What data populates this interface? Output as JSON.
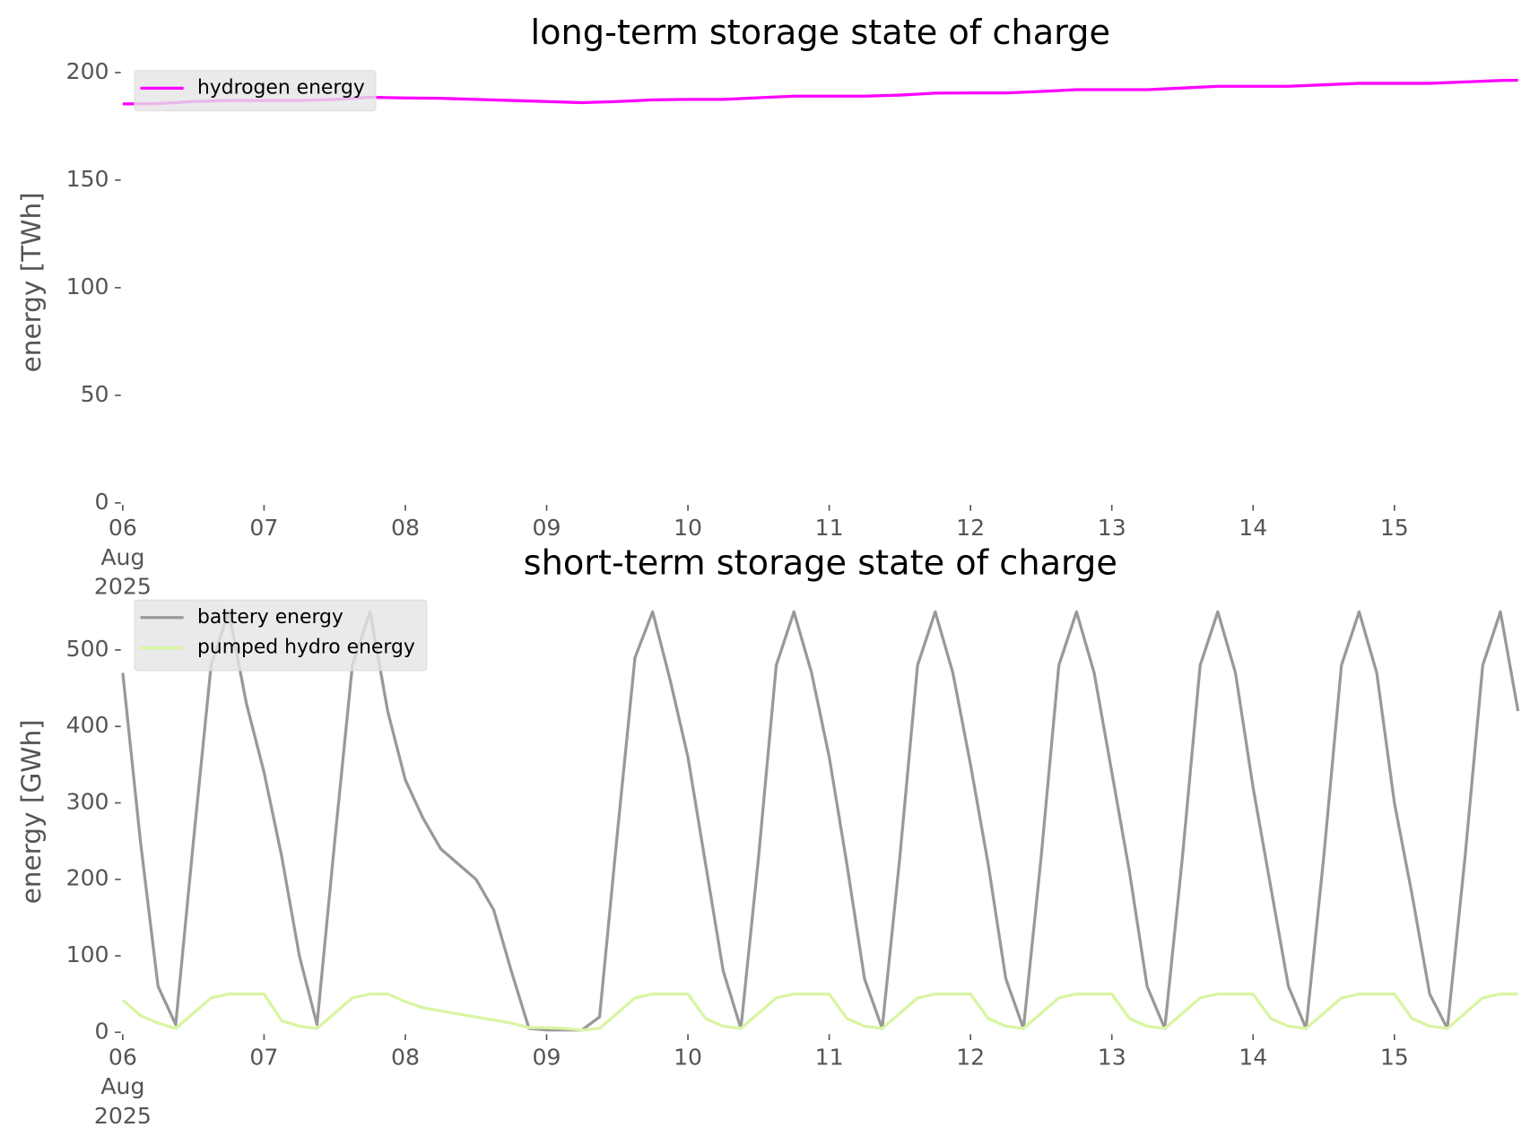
{
  "chart_data": [
    {
      "type": "line",
      "title": "long-term storage state of charge",
      "y_label": "energy [TWh]",
      "x": [
        "2025-08-06 00:00",
        "2025-08-06 06:00",
        "2025-08-06 12:00",
        "2025-08-06 18:00",
        "2025-08-07 00:00",
        "2025-08-07 06:00",
        "2025-08-07 12:00",
        "2025-08-07 18:00",
        "2025-08-08 00:00",
        "2025-08-08 06:00",
        "2025-08-08 12:00",
        "2025-08-08 18:00",
        "2025-08-09 00:00",
        "2025-08-09 06:00",
        "2025-08-09 12:00",
        "2025-08-09 18:00",
        "2025-08-10 00:00",
        "2025-08-10 06:00",
        "2025-08-10 12:00",
        "2025-08-10 18:00",
        "2025-08-11 00:00",
        "2025-08-11 06:00",
        "2025-08-11 12:00",
        "2025-08-11 18:00",
        "2025-08-12 00:00",
        "2025-08-12 06:00",
        "2025-08-12 12:00",
        "2025-08-12 18:00",
        "2025-08-13 00:00",
        "2025-08-13 06:00",
        "2025-08-13 12:00",
        "2025-08-13 18:00",
        "2025-08-14 00:00",
        "2025-08-14 06:00",
        "2025-08-14 12:00",
        "2025-08-14 18:00",
        "2025-08-15 00:00",
        "2025-08-15 06:00",
        "2025-08-15 12:00",
        "2025-08-15 18:00",
        "2025-08-15 21:00"
      ],
      "series": [
        {
          "name": "hydrogen energy",
          "color": "#ff00ff",
          "values": [
            185.4,
            185.5,
            186.5,
            187,
            187,
            187,
            187.5,
            188.5,
            188.2,
            188,
            187.5,
            187,
            186.5,
            186,
            186.5,
            187.3,
            187.5,
            187.5,
            188.3,
            189,
            189,
            189,
            189.5,
            190.4,
            190.5,
            190.5,
            191.2,
            192,
            192,
            192,
            192.8,
            193.6,
            193.6,
            193.6,
            194.3,
            195,
            195,
            195,
            195.6,
            196.3,
            196.4
          ]
        }
      ],
      "xlim": [
        "2025-08-06 00:00",
        "2025-08-15 21:00"
      ],
      "xticks": [
        {
          "value": "2025-08-06 00:00",
          "label": "06\nAug\n2025"
        },
        {
          "value": "2025-08-07 00:00",
          "label": "07"
        },
        {
          "value": "2025-08-08 00:00",
          "label": "08"
        },
        {
          "value": "2025-08-09 00:00",
          "label": "09"
        },
        {
          "value": "2025-08-10 00:00",
          "label": "10"
        },
        {
          "value": "2025-08-11 00:00",
          "label": "11"
        },
        {
          "value": "2025-08-12 00:00",
          "label": "12"
        },
        {
          "value": "2025-08-13 00:00",
          "label": "13"
        },
        {
          "value": "2025-08-14 00:00",
          "label": "14"
        },
        {
          "value": "2025-08-15 00:00",
          "label": "15"
        }
      ],
      "ylim": [
        0,
        205
      ],
      "yticks": [
        0,
        50,
        100,
        150,
        200
      ],
      "grid": false,
      "legend": "upper left"
    },
    {
      "type": "line",
      "title": "short-term storage state of charge",
      "y_label": "energy [GWh]",
      "x": [
        "2025-08-06 00:00",
        "2025-08-06 03:00",
        "2025-08-06 06:00",
        "2025-08-06 09:00",
        "2025-08-06 12:00",
        "2025-08-06 15:00",
        "2025-08-06 18:00",
        "2025-08-06 21:00",
        "2025-08-07 00:00",
        "2025-08-07 03:00",
        "2025-08-07 06:00",
        "2025-08-07 09:00",
        "2025-08-07 12:00",
        "2025-08-07 15:00",
        "2025-08-07 18:00",
        "2025-08-07 21:00",
        "2025-08-08 00:00",
        "2025-08-08 03:00",
        "2025-08-08 06:00",
        "2025-08-08 09:00",
        "2025-08-08 12:00",
        "2025-08-08 15:00",
        "2025-08-08 18:00",
        "2025-08-08 21:00",
        "2025-08-09 00:00",
        "2025-08-09 03:00",
        "2025-08-09 06:00",
        "2025-08-09 09:00",
        "2025-08-09 12:00",
        "2025-08-09 15:00",
        "2025-08-09 18:00",
        "2025-08-09 21:00",
        "2025-08-10 00:00",
        "2025-08-10 03:00",
        "2025-08-10 06:00",
        "2025-08-10 09:00",
        "2025-08-10 12:00",
        "2025-08-10 15:00",
        "2025-08-10 18:00",
        "2025-08-10 21:00",
        "2025-08-11 00:00",
        "2025-08-11 03:00",
        "2025-08-11 06:00",
        "2025-08-11 09:00",
        "2025-08-11 12:00",
        "2025-08-11 15:00",
        "2025-08-11 18:00",
        "2025-08-11 21:00",
        "2025-08-12 00:00",
        "2025-08-12 03:00",
        "2025-08-12 06:00",
        "2025-08-12 09:00",
        "2025-08-12 12:00",
        "2025-08-12 15:00",
        "2025-08-12 18:00",
        "2025-08-12 21:00",
        "2025-08-13 00:00",
        "2025-08-13 03:00",
        "2025-08-13 06:00",
        "2025-08-13 09:00",
        "2025-08-13 12:00",
        "2025-08-13 15:00",
        "2025-08-13 18:00",
        "2025-08-13 21:00",
        "2025-08-14 00:00",
        "2025-08-14 03:00",
        "2025-08-14 06:00",
        "2025-08-14 09:00",
        "2025-08-14 12:00",
        "2025-08-14 15:00",
        "2025-08-14 18:00",
        "2025-08-14 21:00",
        "2025-08-15 00:00",
        "2025-08-15 03:00",
        "2025-08-15 06:00",
        "2025-08-15 09:00",
        "2025-08-15 12:00",
        "2025-08-15 15:00",
        "2025-08-15 18:00",
        "2025-08-15 21:00"
      ],
      "series": [
        {
          "name": "battery energy",
          "color": "#999999",
          "values": [
            470,
            250,
            60,
            10,
            250,
            480,
            550,
            430,
            340,
            230,
            100,
            10,
            250,
            480,
            550,
            420,
            330,
            280,
            240,
            220,
            200,
            160,
            80,
            5,
            3,
            3,
            3,
            20,
            260,
            490,
            550,
            460,
            360,
            220,
            80,
            5,
            230,
            480,
            550,
            470,
            360,
            220,
            70,
            5,
            230,
            480,
            550,
            470,
            350,
            220,
            70,
            5,
            230,
            480,
            550,
            470,
            340,
            210,
            60,
            5,
            230,
            480,
            550,
            470,
            320,
            190,
            60,
            5,
            230,
            480,
            550,
            470,
            300,
            180,
            50,
            5,
            230,
            480,
            550,
            420
          ]
        },
        {
          "name": "pumped hydro energy",
          "color": "#d8f5a2",
          "values": [
            42,
            22,
            12,
            5,
            25,
            45,
            50,
            50,
            50,
            15,
            8,
            5,
            25,
            45,
            50,
            50,
            40,
            32,
            28,
            24,
            20,
            16,
            12,
            6,
            6,
            5,
            3,
            5,
            25,
            45,
            50,
            50,
            50,
            18,
            8,
            5,
            25,
            45,
            50,
            50,
            50,
            18,
            8,
            5,
            25,
            45,
            50,
            50,
            50,
            18,
            8,
            5,
            25,
            45,
            50,
            50,
            50,
            18,
            8,
            5,
            25,
            45,
            50,
            50,
            50,
            18,
            8,
            5,
            25,
            45,
            50,
            50,
            50,
            18,
            8,
            5,
            25,
            45,
            50,
            50
          ]
        }
      ],
      "xlim": [
        "2025-08-06 00:00",
        "2025-08-15 21:00"
      ],
      "xticks": [
        {
          "value": "2025-08-06 00:00",
          "label": "06\nAug\n2025"
        },
        {
          "value": "2025-08-07 00:00",
          "label": "07"
        },
        {
          "value": "2025-08-08 00:00",
          "label": "08"
        },
        {
          "value": "2025-08-09 00:00",
          "label": "09"
        },
        {
          "value": "2025-08-10 00:00",
          "label": "10"
        },
        {
          "value": "2025-08-11 00:00",
          "label": "11"
        },
        {
          "value": "2025-08-12 00:00",
          "label": "12"
        },
        {
          "value": "2025-08-13 00:00",
          "label": "13"
        },
        {
          "value": "2025-08-14 00:00",
          "label": "14"
        },
        {
          "value": "2025-08-15 00:00",
          "label": "15"
        }
      ],
      "ylim": [
        0,
        577
      ],
      "yticks": [
        0,
        100,
        200,
        300,
        400,
        500
      ],
      "grid": false,
      "legend": "upper left"
    }
  ]
}
